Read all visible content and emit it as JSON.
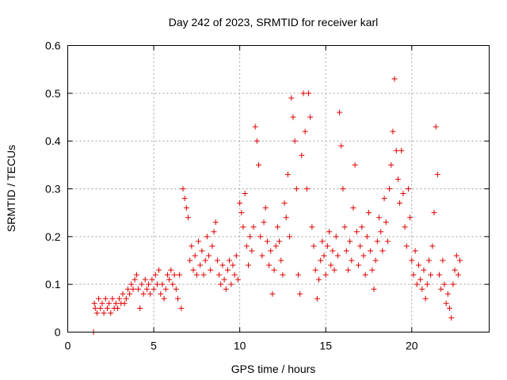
{
  "chart_data": {
    "type": "scatter",
    "title": "Day 242 of 2023, SRMTID for receiver karl",
    "xlabel": "GPS time / hours",
    "ylabel": "SRMTID / TECUs",
    "xlim": [
      0,
      24.5
    ],
    "ylim": [
      0,
      0.6
    ],
    "xticks": [
      0,
      5,
      10,
      15,
      20
    ],
    "yticks": [
      0,
      0.1,
      0.2,
      0.3,
      0.4,
      0.5,
      0.6
    ],
    "xtick_labels": [
      "0",
      "5",
      "10",
      "15",
      "20"
    ],
    "ytick_labels": [
      "0",
      "0.1",
      "0.2",
      "0.3",
      "0.4",
      "0.5",
      "0.6"
    ],
    "grid": true,
    "marker": "plus",
    "color": "#e00000",
    "series": [
      {
        "name": "SRMTID",
        "points": [
          [
            1.5,
            0.0
          ],
          [
            1.55,
            0.06
          ],
          [
            1.6,
            0.05
          ],
          [
            1.7,
            0.04
          ],
          [
            1.8,
            0.07
          ],
          [
            1.9,
            0.05
          ],
          [
            2.0,
            0.06
          ],
          [
            2.1,
            0.04
          ],
          [
            2.2,
            0.07
          ],
          [
            2.3,
            0.05
          ],
          [
            2.4,
            0.06
          ],
          [
            2.5,
            0.04
          ],
          [
            2.6,
            0.07
          ],
          [
            2.7,
            0.05
          ],
          [
            2.8,
            0.06
          ],
          [
            2.9,
            0.05
          ],
          [
            3.0,
            0.07
          ],
          [
            3.1,
            0.06
          ],
          [
            3.2,
            0.08
          ],
          [
            3.3,
            0.06
          ],
          [
            3.4,
            0.07
          ],
          [
            3.5,
            0.09
          ],
          [
            3.6,
            0.08
          ],
          [
            3.7,
            0.1
          ],
          [
            3.8,
            0.09
          ],
          [
            3.9,
            0.11
          ],
          [
            4.0,
            0.12
          ],
          [
            4.1,
            0.09
          ],
          [
            4.2,
            0.05
          ],
          [
            4.3,
            0.1
          ],
          [
            4.4,
            0.08
          ],
          [
            4.5,
            0.11
          ],
          [
            4.6,
            0.09
          ],
          [
            4.7,
            0.1
          ],
          [
            4.8,
            0.08
          ],
          [
            4.9,
            0.11
          ],
          [
            5.0,
            0.09
          ],
          [
            5.1,
            0.12
          ],
          [
            5.2,
            0.1
          ],
          [
            5.3,
            0.13
          ],
          [
            5.4,
            0.08
          ],
          [
            5.5,
            0.1
          ],
          [
            5.6,
            0.07
          ],
          [
            5.7,
            0.09
          ],
          [
            5.8,
            0.12
          ],
          [
            5.9,
            0.11
          ],
          [
            6.0,
            0.13
          ],
          [
            6.1,
            0.1
          ],
          [
            6.2,
            0.12
          ],
          [
            6.3,
            0.09
          ],
          [
            6.4,
            0.07
          ],
          [
            6.5,
            0.12
          ],
          [
            6.6,
            0.05
          ],
          [
            6.7,
            0.3
          ],
          [
            6.8,
            0.28
          ],
          [
            6.9,
            0.26
          ],
          [
            7.0,
            0.24
          ],
          [
            7.1,
            0.15
          ],
          [
            7.2,
            0.18
          ],
          [
            7.3,
            0.13
          ],
          [
            7.4,
            0.16
          ],
          [
            7.5,
            0.12
          ],
          [
            7.6,
            0.19
          ],
          [
            7.7,
            0.14
          ],
          [
            7.8,
            0.17
          ],
          [
            7.9,
            0.12
          ],
          [
            8.0,
            0.15
          ],
          [
            8.1,
            0.2
          ],
          [
            8.2,
            0.16
          ],
          [
            8.3,
            0.13
          ],
          [
            8.4,
            0.18
          ],
          [
            8.5,
            0.21
          ],
          [
            8.6,
            0.23
          ],
          [
            8.7,
            0.15
          ],
          [
            8.8,
            0.12
          ],
          [
            8.9,
            0.1
          ],
          [
            9.0,
            0.14
          ],
          [
            9.1,
            0.11
          ],
          [
            9.2,
            0.09
          ],
          [
            9.3,
            0.13
          ],
          [
            9.4,
            0.15
          ],
          [
            9.5,
            0.1
          ],
          [
            9.6,
            0.14
          ],
          [
            9.7,
            0.12
          ],
          [
            9.8,
            0.16
          ],
          [
            9.9,
            0.11
          ],
          [
            10.0,
            0.27
          ],
          [
            10.1,
            0.25
          ],
          [
            10.2,
            0.22
          ],
          [
            10.3,
            0.29
          ],
          [
            10.4,
            0.18
          ],
          [
            10.5,
            0.14
          ],
          [
            10.6,
            0.2
          ],
          [
            10.7,
            0.17
          ],
          [
            10.8,
            0.22
          ],
          [
            10.9,
            0.43
          ],
          [
            11.0,
            0.4
          ],
          [
            11.1,
            0.35
          ],
          [
            11.2,
            0.2
          ],
          [
            11.3,
            0.16
          ],
          [
            11.4,
            0.23
          ],
          [
            11.5,
            0.26
          ],
          [
            11.6,
            0.19
          ],
          [
            11.7,
            0.14
          ],
          [
            11.8,
            0.17
          ],
          [
            11.9,
            0.08
          ],
          [
            12.0,
            0.13
          ],
          [
            12.1,
            0.18
          ],
          [
            12.2,
            0.22
          ],
          [
            12.3,
            0.19
          ],
          [
            12.4,
            0.15
          ],
          [
            12.5,
            0.12
          ],
          [
            12.6,
            0.27
          ],
          [
            12.7,
            0.24
          ],
          [
            12.8,
            0.33
          ],
          [
            12.9,
            0.2
          ],
          [
            13.0,
            0.49
          ],
          [
            13.1,
            0.45
          ],
          [
            13.2,
            0.4
          ],
          [
            13.3,
            0.3
          ],
          [
            13.4,
            0.12
          ],
          [
            13.5,
            0.08
          ],
          [
            13.6,
            0.37
          ],
          [
            13.7,
            0.5
          ],
          [
            13.8,
            0.42
          ],
          [
            13.9,
            0.3
          ],
          [
            14.0,
            0.5
          ],
          [
            14.1,
            0.45
          ],
          [
            14.2,
            0.22
          ],
          [
            14.3,
            0.18
          ],
          [
            14.4,
            0.13
          ],
          [
            14.5,
            0.07
          ],
          [
            14.6,
            0.11
          ],
          [
            14.7,
            0.15
          ],
          [
            14.8,
            0.19
          ],
          [
            14.9,
            0.16
          ],
          [
            15.0,
            0.12
          ],
          [
            15.1,
            0.18
          ],
          [
            15.2,
            0.21
          ],
          [
            15.3,
            0.14
          ],
          [
            15.4,
            0.17
          ],
          [
            15.5,
            0.13
          ],
          [
            15.6,
            0.2
          ],
          [
            15.7,
            0.16
          ],
          [
            15.8,
            0.46
          ],
          [
            15.9,
            0.39
          ],
          [
            16.0,
            0.3
          ],
          [
            16.1,
            0.22
          ],
          [
            16.2,
            0.17
          ],
          [
            16.3,
            0.13
          ],
          [
            16.4,
            0.19
          ],
          [
            16.5,
            0.15
          ],
          [
            16.6,
            0.26
          ],
          [
            16.7,
            0.35
          ],
          [
            16.8,
            0.21
          ],
          [
            16.9,
            0.14
          ],
          [
            17.0,
            0.18
          ],
          [
            17.1,
            0.22
          ],
          [
            17.2,
            0.16
          ],
          [
            17.3,
            0.12
          ],
          [
            17.4,
            0.2
          ],
          [
            17.5,
            0.25
          ],
          [
            17.6,
            0.17
          ],
          [
            17.7,
            0.13
          ],
          [
            17.8,
            0.09
          ],
          [
            17.9,
            0.15
          ],
          [
            18.0,
            0.19
          ],
          [
            18.1,
            0.24
          ],
          [
            18.2,
            0.21
          ],
          [
            18.3,
            0.17
          ],
          [
            18.4,
            0.28
          ],
          [
            18.5,
            0.23
          ],
          [
            18.6,
            0.19
          ],
          [
            18.7,
            0.3
          ],
          [
            18.8,
            0.35
          ],
          [
            18.9,
            0.42
          ],
          [
            19.0,
            0.53
          ],
          [
            19.1,
            0.38
          ],
          [
            19.2,
            0.32
          ],
          [
            19.3,
            0.27
          ],
          [
            19.4,
            0.38
          ],
          [
            19.5,
            0.29
          ],
          [
            19.6,
            0.22
          ],
          [
            19.7,
            0.18
          ],
          [
            19.8,
            0.3
          ],
          [
            19.9,
            0.24
          ],
          [
            20.0,
            0.15
          ],
          [
            20.1,
            0.12
          ],
          [
            20.2,
            0.17
          ],
          [
            20.3,
            0.1
          ],
          [
            20.4,
            0.14
          ],
          [
            20.5,
            0.11
          ],
          [
            20.6,
            0.09
          ],
          [
            20.7,
            0.13
          ],
          [
            20.8,
            0.07
          ],
          [
            20.9,
            0.1
          ],
          [
            21.0,
            0.15
          ],
          [
            21.1,
            0.12
          ],
          [
            21.2,
            0.18
          ],
          [
            21.3,
            0.25
          ],
          [
            21.4,
            0.43
          ],
          [
            21.5,
            0.33
          ],
          [
            21.6,
            0.12
          ],
          [
            21.7,
            0.09
          ],
          [
            21.8,
            0.15
          ],
          [
            21.9,
            0.1
          ],
          [
            22.0,
            0.06
          ],
          [
            22.1,
            0.08
          ],
          [
            22.2,
            0.05
          ],
          [
            22.3,
            0.03
          ],
          [
            22.4,
            0.1
          ],
          [
            22.5,
            0.13
          ],
          [
            22.6,
            0.16
          ],
          [
            22.7,
            0.12
          ],
          [
            22.8,
            0.15
          ]
        ]
      }
    ]
  }
}
